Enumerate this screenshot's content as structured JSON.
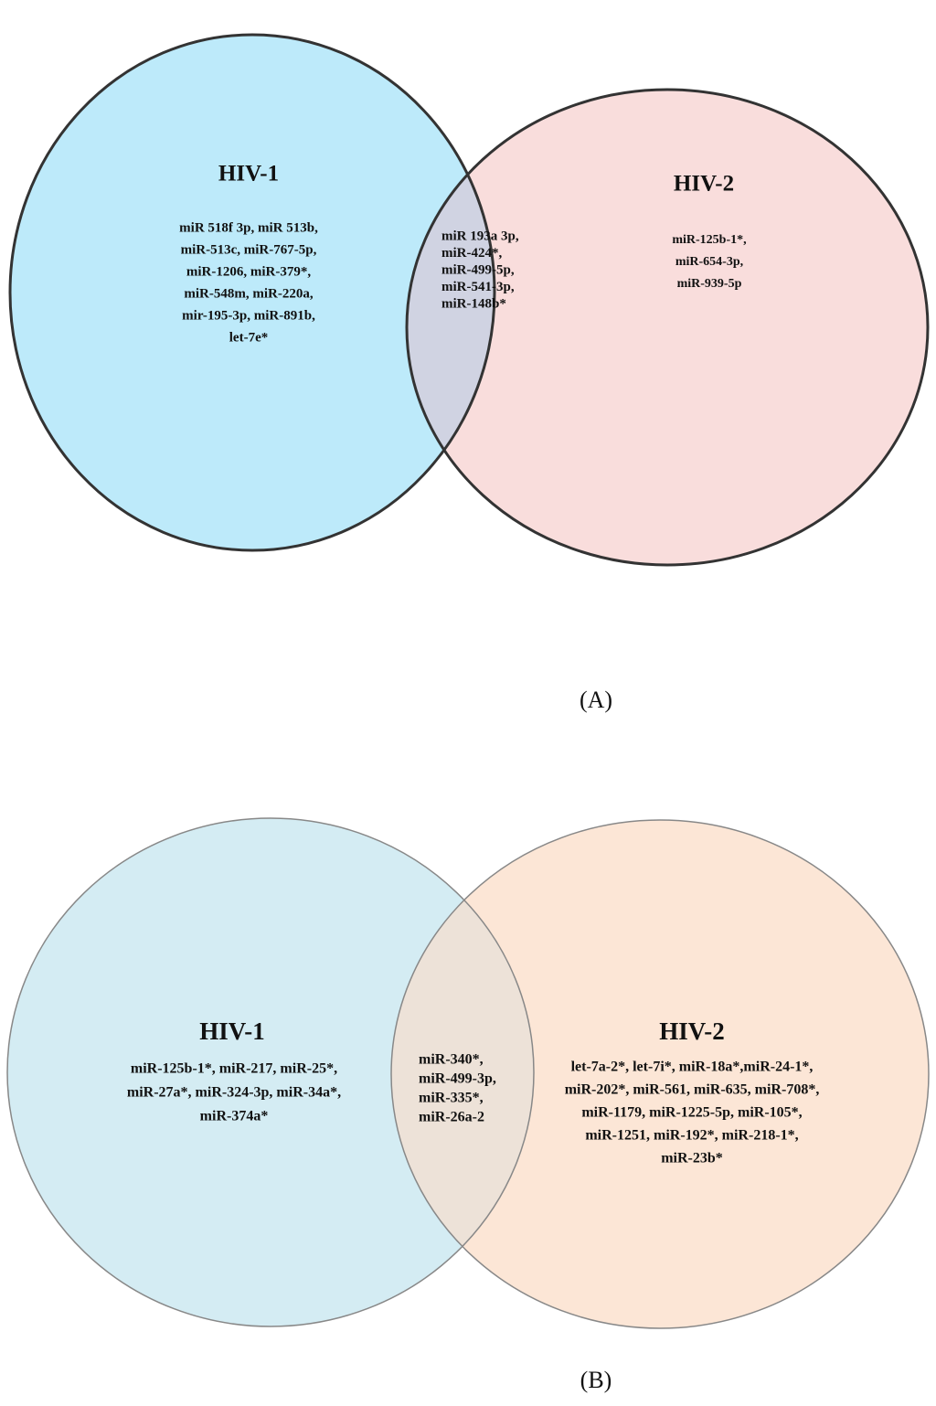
{
  "panels": [
    {
      "caption": "(A)",
      "left": {
        "label": "HIV-1",
        "lines": [
          "miR 518f 3p, miR 513b,",
          "miR-513c, miR-767-5p,",
          "miR-1206, miR-379*,",
          "miR-548m, miR-220a,",
          "mir-195-3p, miR-891b,",
          "let-7e*"
        ]
      },
      "intersection": {
        "lines": [
          "miR 193a 3p,",
          "miR-424*,",
          "miR-499-5p,",
          "miR-541-3p,",
          "miR-148b*"
        ]
      },
      "right": {
        "label": "HIV-2",
        "lines": [
          "miR-125b-1*,",
          "miR-654-3p,",
          "miR-939-5p"
        ]
      }
    },
    {
      "caption": "(B)",
      "left": {
        "label": "HIV-1",
        "lines": [
          "miR-125b-1*, miR-217, miR-25*,",
          "miR-27a*, miR-324-3p, miR-34a*,",
          "miR-374a*"
        ]
      },
      "intersection": {
        "lines": [
          "miR-340*,",
          "miR-499-3p,",
          "miR-335*,",
          "miR-26a-2"
        ]
      },
      "right": {
        "label": "HIV-2",
        "lines": [
          "let-7a-2*, let-7i*, miR-18a*,miR-24-1*,",
          "miR-202*, miR-561, miR-635, miR-708*,",
          "miR-1179, miR-1225-5p, miR-105*,",
          "miR-1251, miR-192*, miR-218-1*,",
          "miR-23b*"
        ]
      }
    }
  ]
}
